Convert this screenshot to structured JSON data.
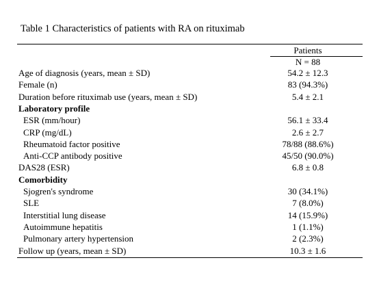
{
  "title": "Table 1 Characteristics of patients with RA on rituximab",
  "header": {
    "column": "Patients",
    "n": "N = 88"
  },
  "rows": [
    {
      "label": "Age of diagnosis (years, mean ± SD)",
      "value": "54.2 ± 12.3"
    },
    {
      "label": "Female (n)",
      "value": "83 (94.3%)"
    },
    {
      "label": "Duration before rituximab use (years, mean ± SD)",
      "value": "5.4 ± 2.1"
    },
    {
      "heading": "Laboratory profile"
    },
    {
      "label": "ESR (mm/hour)",
      "value": "56.1 ± 33.4",
      "indent": true
    },
    {
      "label": "CRP (mg/dL)",
      "value": "2.6 ± 2.7",
      "indent": true
    },
    {
      "label": "Rheumatoid factor positive",
      "value": "78/88 (88.6%)",
      "indent": true
    },
    {
      "label": "Anti-CCP antibody positive",
      "value": "45/50 (90.0%)",
      "indent": true
    },
    {
      "label": "DAS28 (ESR)",
      "value": "6.8 ± 0.8"
    },
    {
      "heading": "Comorbidity"
    },
    {
      "label": "Sjogren's syndrome",
      "value": "30 (34.1%)",
      "indent": true
    },
    {
      "label": "SLE",
      "value": "7 (8.0%)",
      "indent": true
    },
    {
      "label": "Interstitial lung disease",
      "value": "14 (15.9%)",
      "indent": true
    },
    {
      "label": "Autoimmune hepatitis",
      "value": "1 (1.1%)",
      "indent": true
    },
    {
      "label": "Pulmonary artery hypertension",
      "value": "2 (2.3%)",
      "indent": true
    },
    {
      "label": "Follow up (years, mean ± SD)",
      "value": "10.3 ± 1.6"
    }
  ]
}
